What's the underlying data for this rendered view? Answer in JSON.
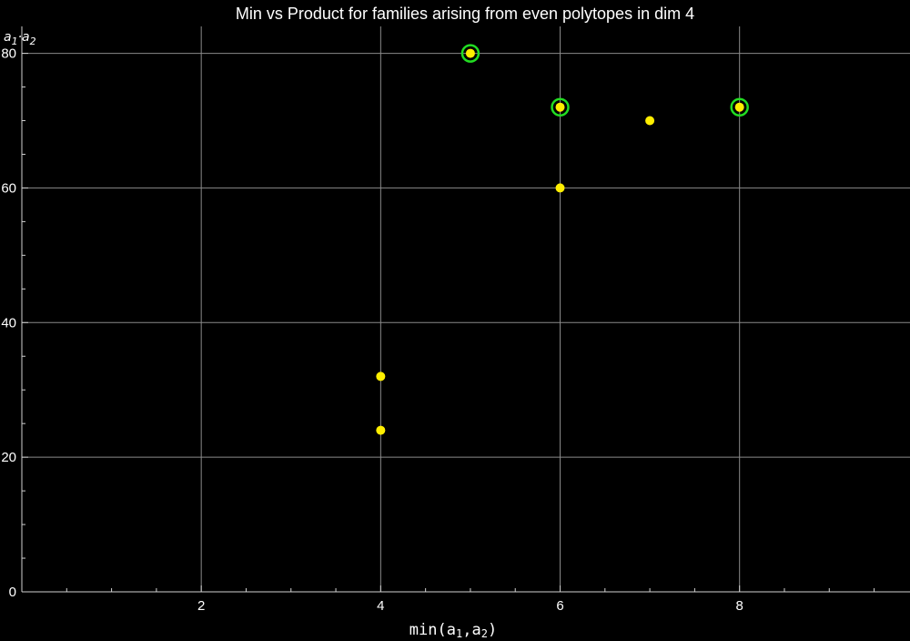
{
  "chart_data": {
    "type": "scatter",
    "title": "Min vs Product for families arising from even polytopes in dim 4",
    "xlabel": {
      "base": "min(a",
      "sub1": "1",
      "mid": ",a",
      "sub2": "2",
      "end": ")"
    },
    "ylabel": {
      "a": "a",
      "sub1": "1",
      "dot": "·",
      "b": "a",
      "sub2": "2"
    },
    "xlim": [
      0,
      9.9
    ],
    "ylim": [
      0,
      84
    ],
    "xticks": [
      2,
      4,
      6,
      8
    ],
    "yticks": [
      0,
      20,
      40,
      60,
      80
    ],
    "grid": true,
    "background": "#000000",
    "point_color": "#ffee00",
    "highlight_color": "#22dd22",
    "points": [
      {
        "x": 4,
        "y": 24,
        "highlighted": false
      },
      {
        "x": 4,
        "y": 32,
        "highlighted": false
      },
      {
        "x": 5,
        "y": 80,
        "highlighted": true
      },
      {
        "x": 6,
        "y": 60,
        "highlighted": false
      },
      {
        "x": 6,
        "y": 72,
        "highlighted": true
      },
      {
        "x": 7,
        "y": 70,
        "highlighted": false
      },
      {
        "x": 8,
        "y": 72,
        "highlighted": true
      }
    ]
  }
}
